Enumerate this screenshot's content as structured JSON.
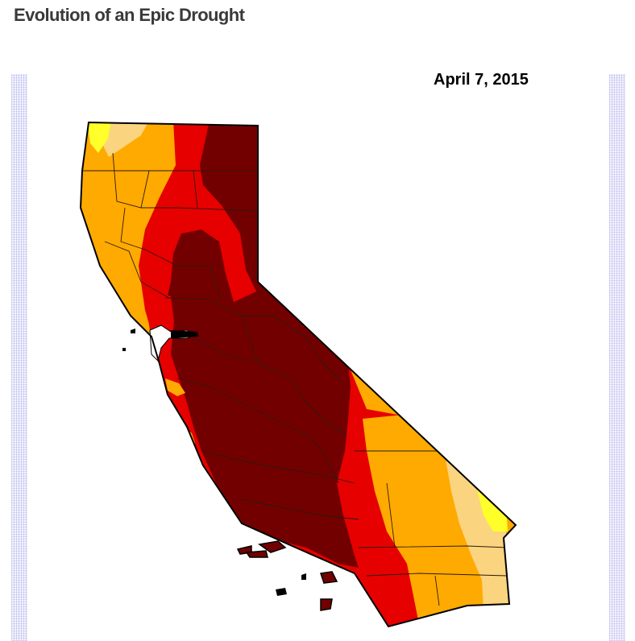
{
  "header": {
    "title": "Evolution of an Epic Drought"
  },
  "map": {
    "date_label": "April 7, 2015"
  },
  "drought_colors": {
    "D0": "#ffff2a",
    "D1": "#fbd47f",
    "D2": "#ffaa00",
    "D3": "#e60000",
    "D4": "#730000"
  },
  "outline_color": "#000000"
}
